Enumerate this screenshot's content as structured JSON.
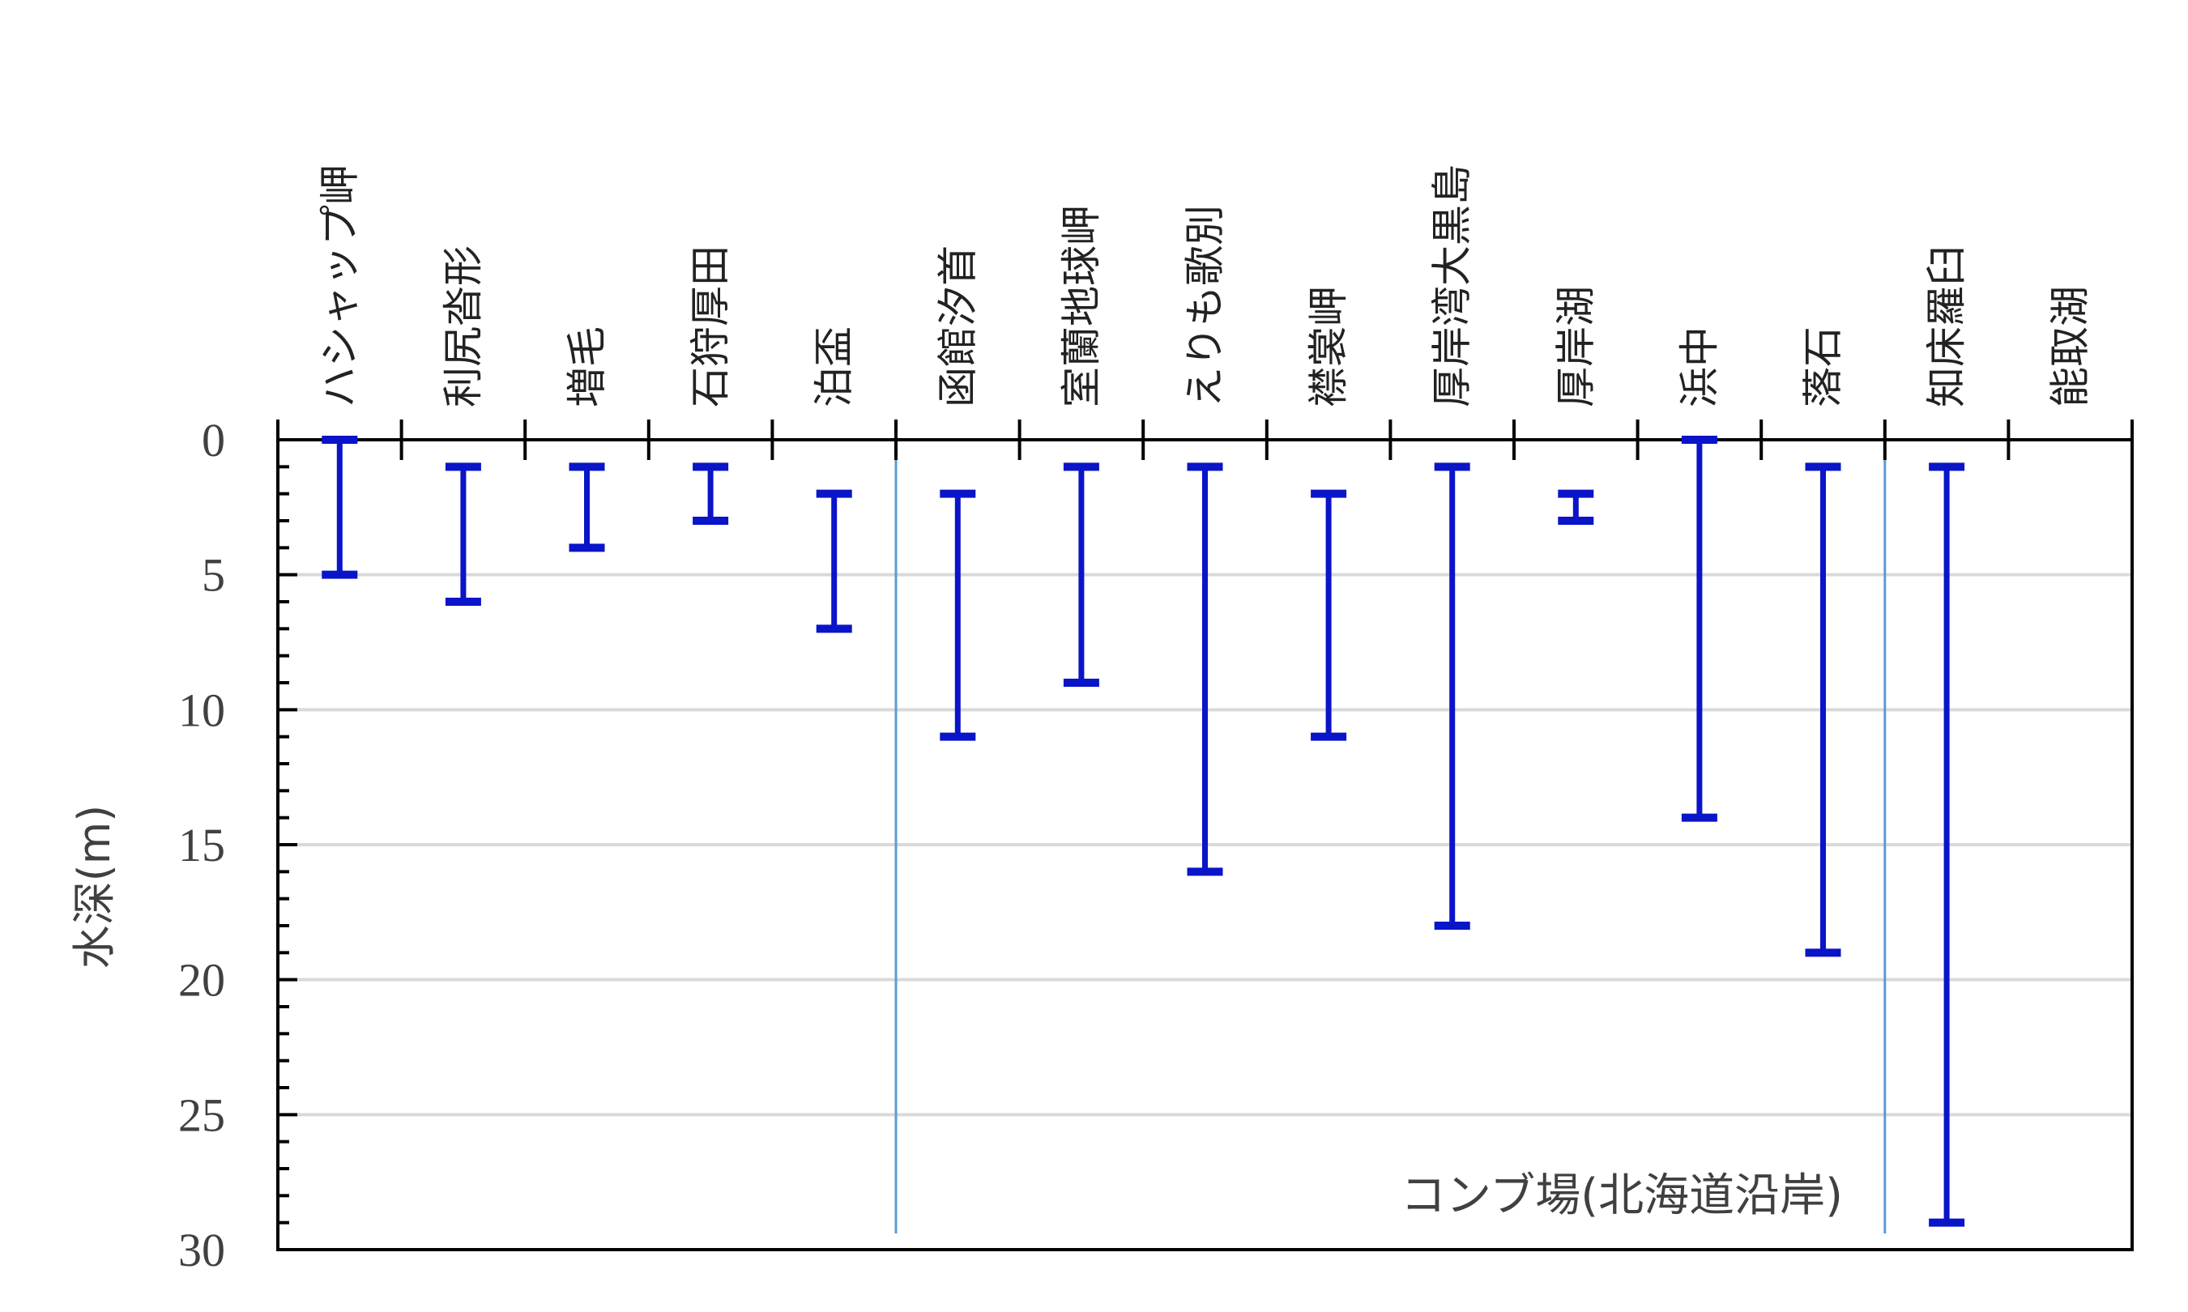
{
  "chart_data": {
    "type": "range",
    "ylabel": "水深(m)",
    "y_inverted": true,
    "ylim": [
      0,
      30
    ],
    "y_major_ticks": [
      0,
      5,
      10,
      15,
      20,
      25,
      30
    ],
    "y_minor_step": 1,
    "grid": "horizontal major",
    "categories": [
      "ハシャップ岬",
      "利尻沓形",
      "増毛",
      "石狩厚田",
      "泊盃",
      "函館汐首",
      "室蘭地球岬",
      "えりも歌別",
      "襟裳岬",
      "厚岸湾大黒島",
      "厚岸湖",
      "浜中",
      "落石",
      "知床羅臼",
      "能取湖"
    ],
    "ranges": [
      {
        "min": 0,
        "max": 5
      },
      {
        "min": 1,
        "max": 6
      },
      {
        "min": 1,
        "max": 4
      },
      {
        "min": 1,
        "max": 3
      },
      {
        "min": 2,
        "max": 7
      },
      {
        "min": 2,
        "max": 11
      },
      {
        "min": 1,
        "max": 9
      },
      {
        "min": 1,
        "max": 16
      },
      {
        "min": 2,
        "max": 11
      },
      {
        "min": 1,
        "max": 18
      },
      {
        "min": 2,
        "max": 3
      },
      {
        "min": 0,
        "max": 14
      },
      {
        "min": 1,
        "max": 19
      },
      {
        "min": 1,
        "max": 29
      },
      null
    ],
    "group_separators_after": [
      4,
      12
    ],
    "annotation": "コンブ場(北海道沿岸)",
    "colors": {
      "bar": "#0a14c8",
      "separator": "#5b9bd5",
      "grid": "#d9d9d9",
      "axis": "#000000"
    }
  }
}
